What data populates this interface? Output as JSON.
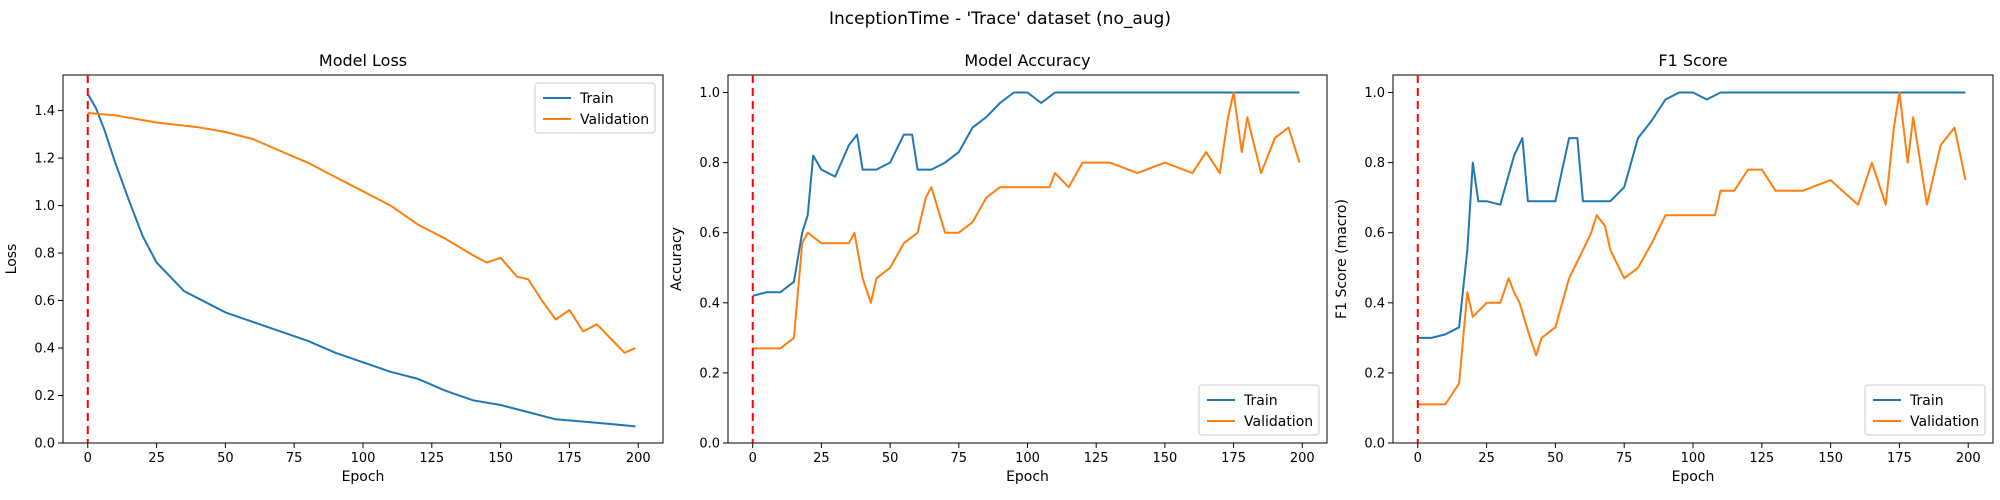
{
  "figure": {
    "suptitle": "InceptionTime - 'Trace' dataset (no_aug)"
  },
  "chart_data": [
    {
      "type": "line",
      "title": "Model Loss",
      "xlabel": "Epoch",
      "ylabel": "Loss",
      "xlim": [
        -9,
        209
      ],
      "ylim": [
        0,
        1.55
      ],
      "xticks": [
        0,
        25,
        50,
        75,
        100,
        125,
        150,
        175,
        200
      ],
      "yticks": [
        0.0,
        0.2,
        0.4,
        0.6,
        0.8,
        1.0,
        1.2,
        1.4
      ],
      "legend": "upper right",
      "vline_x": 0,
      "series": [
        {
          "name": "Train",
          "color": "#1f77b4",
          "x": [
            0,
            3,
            6,
            10,
            15,
            20,
            25,
            30,
            35,
            40,
            45,
            50,
            60,
            70,
            80,
            90,
            100,
            110,
            120,
            130,
            140,
            150,
            160,
            170,
            180,
            190,
            199
          ],
          "y": [
            1.47,
            1.41,
            1.32,
            1.18,
            1.02,
            0.87,
            0.76,
            0.7,
            0.64,
            0.61,
            0.58,
            0.55,
            0.51,
            0.47,
            0.43,
            0.38,
            0.34,
            0.3,
            0.27,
            0.22,
            0.18,
            0.16,
            0.13,
            0.1,
            0.09,
            0.08,
            0.07
          ]
        },
        {
          "name": "Validation",
          "color": "#ff7f0e",
          "x": [
            0,
            10,
            25,
            40,
            50,
            60,
            70,
            80,
            90,
            100,
            110,
            120,
            130,
            140,
            145,
            150,
            153,
            156,
            160,
            165,
            170,
            175,
            180,
            185,
            190,
            195,
            199
          ],
          "y": [
            1.39,
            1.38,
            1.35,
            1.33,
            1.31,
            1.28,
            1.23,
            1.18,
            1.12,
            1.06,
            1.0,
            0.92,
            0.86,
            0.79,
            0.76,
            0.78,
            0.74,
            0.7,
            0.69,
            0.6,
            0.52,
            0.56,
            0.47,
            0.5,
            0.44,
            0.38,
            0.4
          ]
        }
      ]
    },
    {
      "type": "line",
      "title": "Model Accuracy",
      "xlabel": "Epoch",
      "ylabel": "Accuracy",
      "xlim": [
        -9,
        209
      ],
      "ylim": [
        0,
        1.05
      ],
      "xticks": [
        0,
        25,
        50,
        75,
        100,
        125,
        150,
        175,
        200
      ],
      "yticks": [
        0.0,
        0.2,
        0.4,
        0.6,
        0.8,
        1.0
      ],
      "legend": "lower right",
      "vline_x": 0,
      "series": [
        {
          "name": "Train",
          "color": "#1f77b4",
          "x": [
            0,
            5,
            10,
            15,
            18,
            20,
            22,
            25,
            30,
            35,
            38,
            40,
            45,
            50,
            55,
            58,
            60,
            65,
            70,
            75,
            80,
            85,
            90,
            95,
            100,
            105,
            110,
            120,
            130,
            140,
            150,
            160,
            170,
            180,
            199
          ],
          "y": [
            0.42,
            0.43,
            0.43,
            0.46,
            0.6,
            0.65,
            0.82,
            0.78,
            0.76,
            0.85,
            0.88,
            0.78,
            0.78,
            0.8,
            0.88,
            0.88,
            0.78,
            0.78,
            0.8,
            0.83,
            0.9,
            0.93,
            0.97,
            1.0,
            1.0,
            0.97,
            1.0,
            1.0,
            1.0,
            1.0,
            1.0,
            1.0,
            1.0,
            1.0,
            1.0
          ]
        },
        {
          "name": "Validation",
          "color": "#ff7f0e",
          "x": [
            0,
            10,
            15,
            18,
            20,
            25,
            30,
            35,
            37,
            40,
            43,
            45,
            50,
            55,
            60,
            63,
            65,
            70,
            75,
            80,
            85,
            90,
            100,
            108,
            110,
            115,
            120,
            125,
            130,
            140,
            150,
            160,
            165,
            170,
            173,
            175,
            178,
            180,
            185,
            190,
            195,
            199
          ],
          "y": [
            0.27,
            0.27,
            0.3,
            0.57,
            0.6,
            0.57,
            0.57,
            0.57,
            0.6,
            0.47,
            0.4,
            0.47,
            0.5,
            0.57,
            0.6,
            0.7,
            0.73,
            0.6,
            0.6,
            0.63,
            0.7,
            0.73,
            0.73,
            0.73,
            0.77,
            0.73,
            0.8,
            0.8,
            0.8,
            0.77,
            0.8,
            0.77,
            0.83,
            0.77,
            0.93,
            1.0,
            0.83,
            0.93,
            0.77,
            0.87,
            0.9,
            0.8
          ]
        }
      ]
    },
    {
      "type": "line",
      "title": "F1 Score",
      "xlabel": "Epoch",
      "ylabel": "F1 Score (macro)",
      "xlim": [
        -9,
        209
      ],
      "ylim": [
        0,
        1.05
      ],
      "xticks": [
        0,
        25,
        50,
        75,
        100,
        125,
        150,
        175,
        200
      ],
      "yticks": [
        0.0,
        0.2,
        0.4,
        0.6,
        0.8,
        1.0
      ],
      "legend": "lower right",
      "vline_x": 0,
      "series": [
        {
          "name": "Train",
          "color": "#1f77b4",
          "x": [
            0,
            5,
            10,
            15,
            18,
            20,
            22,
            25,
            30,
            35,
            38,
            40,
            45,
            50,
            55,
            58,
            60,
            65,
            70,
            75,
            80,
            85,
            90,
            95,
            100,
            105,
            110,
            120,
            130,
            140,
            150,
            160,
            170,
            180,
            199
          ],
          "y": [
            0.3,
            0.3,
            0.31,
            0.33,
            0.55,
            0.8,
            0.69,
            0.69,
            0.68,
            0.82,
            0.87,
            0.69,
            0.69,
            0.69,
            0.87,
            0.87,
            0.69,
            0.69,
            0.69,
            0.73,
            0.87,
            0.92,
            0.98,
            1.0,
            1.0,
            0.98,
            1.0,
            1.0,
            1.0,
            1.0,
            1.0,
            1.0,
            1.0,
            1.0,
            1.0
          ]
        },
        {
          "name": "Validation",
          "color": "#ff7f0e",
          "x": [
            0,
            10,
            15,
            18,
            20,
            25,
            30,
            33,
            35,
            37,
            40,
            43,
            45,
            50,
            55,
            60,
            63,
            65,
            68,
            70,
            75,
            80,
            85,
            90,
            100,
            108,
            110,
            115,
            120,
            125,
            130,
            140,
            150,
            160,
            165,
            170,
            173,
            175,
            178,
            180,
            185,
            190,
            195,
            199
          ],
          "y": [
            0.11,
            0.11,
            0.17,
            0.43,
            0.36,
            0.4,
            0.4,
            0.47,
            0.43,
            0.4,
            0.32,
            0.25,
            0.3,
            0.33,
            0.47,
            0.55,
            0.6,
            0.65,
            0.62,
            0.55,
            0.47,
            0.5,
            0.57,
            0.65,
            0.65,
            0.65,
            0.72,
            0.72,
            0.78,
            0.78,
            0.72,
            0.72,
            0.75,
            0.68,
            0.8,
            0.68,
            0.9,
            1.0,
            0.8,
            0.93,
            0.68,
            0.85,
            0.9,
            0.75
          ]
        }
      ]
    }
  ]
}
